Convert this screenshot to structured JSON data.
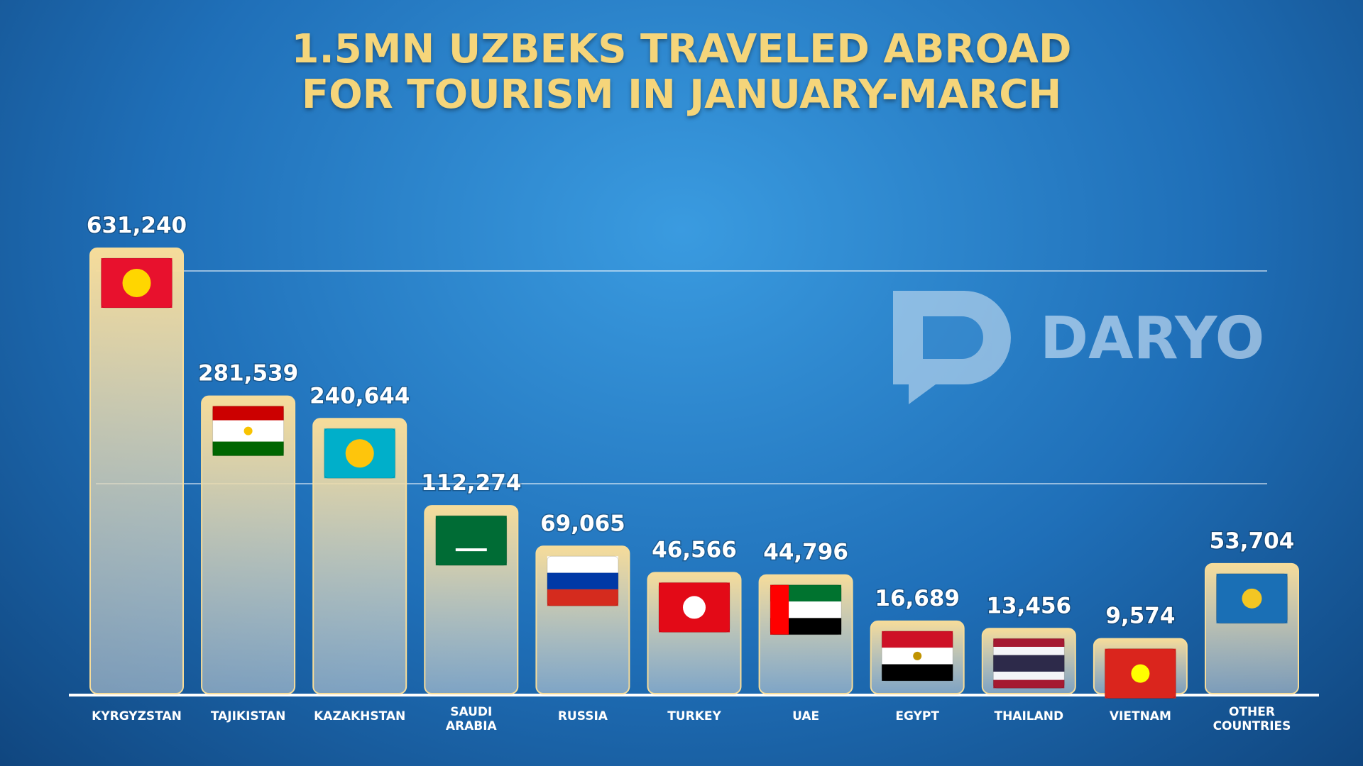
{
  "chart_data": {
    "type": "bar",
    "title": "1.5MN UZBEKS TRAVELED ABROAD FOR TOURISM IN JANUARY-MARCH",
    "brand": "DARYO",
    "categories": [
      "KYRGYZSTAN",
      "TAJIKISTAN",
      "KAZAKHSTAN",
      "SAUDI\nARABIA",
      "RUSSIA",
      "TURKEY",
      "UAE",
      "EGYPT",
      "THAILAND",
      "VIETNAM",
      "OTHER\nCOUNTRIES"
    ],
    "values": [
      631240,
      281539,
      240644,
      112274,
      69065,
      46566,
      44796,
      16689,
      13456,
      9574,
      53704
    ],
    "value_labels": [
      "631,240",
      "281,539",
      "240,644",
      "112,274",
      "69,065",
      "46,566",
      "44,796",
      "16,689",
      "13,456",
      "9,574",
      "53,704"
    ],
    "color": "#f6dc9a"
  }
}
